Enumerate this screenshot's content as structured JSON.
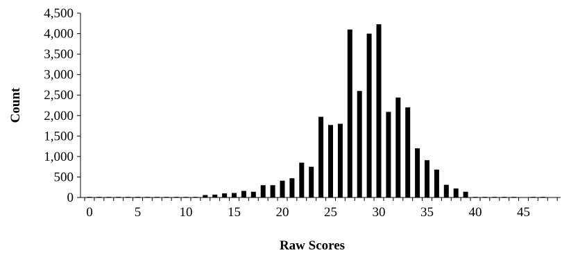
{
  "chart_data": {
    "type": "bar",
    "title": "",
    "xlabel": "Raw Scores",
    "ylabel": "Count",
    "x": [
      0,
      1,
      2,
      3,
      4,
      5,
      6,
      7,
      8,
      9,
      10,
      11,
      12,
      13,
      14,
      15,
      16,
      17,
      18,
      19,
      20,
      21,
      22,
      23,
      24,
      25,
      26,
      27,
      28,
      29,
      30,
      31,
      32,
      33,
      34,
      35,
      36,
      37,
      38,
      39,
      40,
      41,
      42,
      43,
      44,
      45,
      46,
      47,
      48
    ],
    "values": [
      15,
      15,
      15,
      15,
      15,
      15,
      15,
      15,
      15,
      15,
      15,
      15,
      60,
      70,
      100,
      110,
      160,
      140,
      300,
      300,
      410,
      470,
      850,
      750,
      1970,
      1770,
      1800,
      4100,
      2600,
      4000,
      4230,
      2090,
      2440,
      2200,
      1200,
      910,
      680,
      310,
      220,
      140,
      15,
      15,
      15,
      15,
      15,
      0,
      15,
      15,
      0
    ],
    "ylim": [
      0,
      4500
    ],
    "yticks": [
      0,
      500,
      1000,
      1500,
      2000,
      2500,
      3000,
      3500,
      4000,
      4500
    ],
    "ytick_labels": [
      "0",
      "500",
      "1,000",
      "1,500",
      "2,000",
      "2,500",
      "3,000",
      "3,500",
      "4,000",
      "4,500"
    ],
    "xticks": [
      0,
      5,
      10,
      15,
      20,
      25,
      30,
      35,
      40,
      45
    ],
    "xtick_labels": [
      "0",
      "5",
      "10",
      "15",
      "20",
      "25",
      "30",
      "35",
      "40",
      "45"
    ],
    "grid": false,
    "legend": "none",
    "bar_color": "#000000"
  }
}
